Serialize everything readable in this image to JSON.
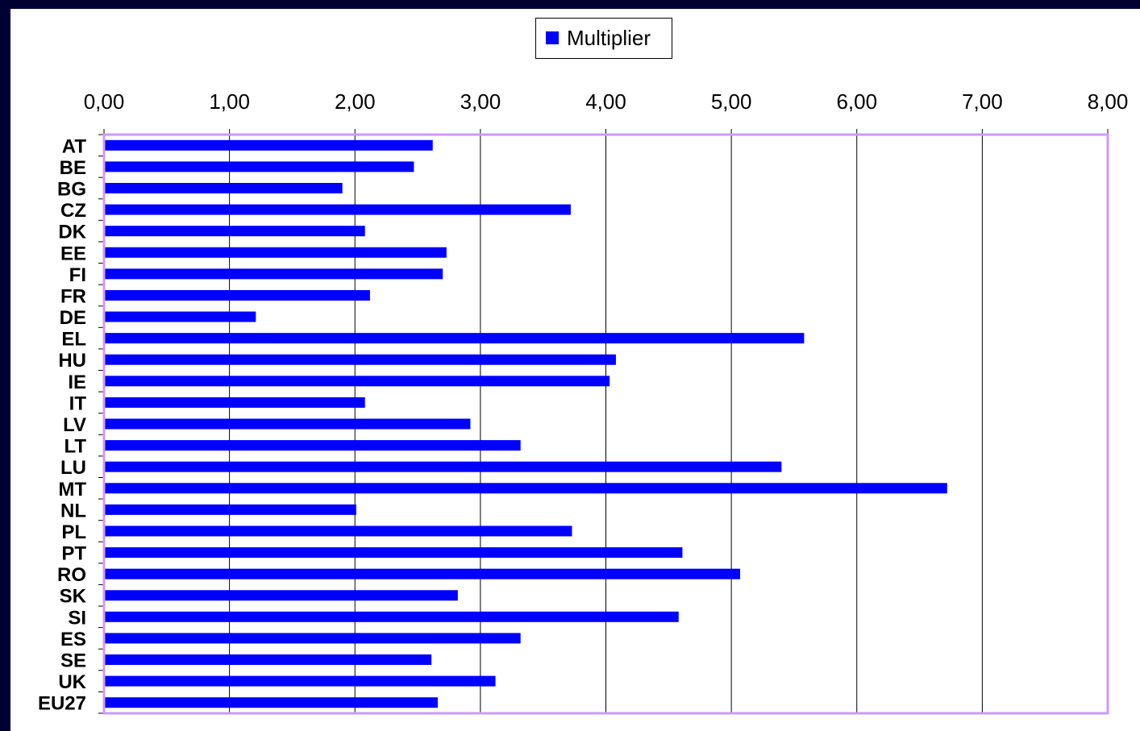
{
  "chart_data": {
    "type": "bar",
    "orientation": "horizontal",
    "legend": {
      "label": "Multiplier",
      "placement": "top-center"
    },
    "categories": [
      "AT",
      "BE",
      "BG",
      "CZ",
      "DK",
      "EE",
      "FI",
      "FR",
      "DE",
      "EL",
      "HU",
      "IE",
      "IT",
      "LV",
      "LT",
      "LU",
      "MT",
      "NL",
      "PL",
      "PT",
      "RO",
      "SK",
      "SI",
      "ES",
      "SE",
      "UK",
      "EU27"
    ],
    "series": [
      {
        "name": "Multiplier",
        "values": [
          2.62,
          2.47,
          1.9,
          3.72,
          2.08,
          2.73,
          2.7,
          2.12,
          1.21,
          5.58,
          4.08,
          4.03,
          2.08,
          2.92,
          3.32,
          5.4,
          6.72,
          2.01,
          3.73,
          4.61,
          5.07,
          2.82,
          4.58,
          3.32,
          2.61,
          3.12,
          2.66
        ]
      }
    ],
    "xlim": [
      0,
      8
    ],
    "xticks": [
      "0,00",
      "1,00",
      "2,00",
      "3,00",
      "4,00",
      "5,00",
      "6,00",
      "7,00",
      "8,00"
    ],
    "grid": true,
    "colors": {
      "bar": "#0000ff",
      "plot_border": "#cc99ff",
      "background": "#ffffff",
      "outer": "#000033"
    }
  }
}
